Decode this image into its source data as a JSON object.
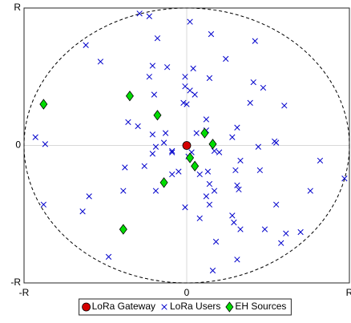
{
  "chart_data": {
    "type": "scatter",
    "xlim": [
      -1,
      1
    ],
    "ylim": [
      -1,
      1
    ],
    "xticks": [
      {
        "value": -1,
        "label": "-R"
      },
      0,
      {
        "value": 1,
        "label": "R"
      }
    ],
    "yticks": [
      {
        "value": -1,
        "label": "-R"
      },
      0,
      {
        "value": 1,
        "label": "R"
      }
    ],
    "grid": true,
    "legend": "bottom",
    "boundary_circle": true,
    "series": [
      {
        "name": "LoRa Gateway",
        "color": "#d40000",
        "marker": "circle",
        "x": [
          0
        ],
        "y": [
          0
        ]
      },
      {
        "name": "LoRa Users",
        "color": "#0000cc",
        "marker": "x",
        "x": [
          -0.29,
          -0.23,
          0.02,
          -0.18,
          0.15,
          0.42,
          -0.62,
          -0.53,
          -0.21,
          -0.12,
          0.24,
          0.04,
          -0.23,
          -0.01,
          0.41,
          0.14,
          0.02,
          -0.01,
          0.47,
          0.05,
          -0.2,
          -0.02,
          0.0,
          -0.36,
          -0.3,
          -0.13,
          0.12,
          0.39,
          0.6,
          0.12,
          -0.21,
          0.31,
          0.06,
          -0.93,
          -0.87,
          -0.14,
          -0.19,
          -0.09,
          0.28,
          0.44,
          0.54,
          0.55,
          0.2,
          -0.21,
          -0.09,
          0.03,
          0.17,
          0.01,
          0.33,
          0.82,
          -0.38,
          -0.26,
          -0.09,
          -0.05,
          0.13,
          0.08,
          0.3,
          0.14,
          0.32,
          0.45,
          0.76,
          0.97,
          0.31,
          0.17,
          -0.6,
          -0.39,
          -0.19,
          0.12,
          0.14,
          -0.88,
          -0.64,
          -0.01,
          0.55,
          0.28,
          0.08,
          0.29,
          0.33,
          0.48,
          0.61,
          0.7,
          0.58,
          0.18,
          -0.48,
          0.31,
          0.16
        ],
        "y": [
          0.96,
          0.94,
          0.9,
          0.78,
          0.81,
          0.76,
          0.73,
          0.61,
          0.58,
          0.57,
          0.63,
          0.56,
          0.5,
          0.5,
          0.46,
          0.49,
          0.4,
          0.43,
          0.42,
          0.37,
          0.37,
          0.31,
          0.3,
          0.17,
          0.14,
          0.09,
          0.19,
          0.31,
          0.29,
          0.11,
          0.08,
          0.13,
          0.09,
          0.06,
          0.01,
          0.02,
          -0.01,
          -0.04,
          0.06,
          -0.01,
          0.03,
          0.02,
          -0.05,
          -0.06,
          -0.05,
          -0.05,
          -0.04,
          -0.08,
          -0.11,
          -0.11,
          -0.16,
          -0.15,
          -0.21,
          -0.19,
          -0.19,
          -0.21,
          -0.18,
          -0.28,
          -0.32,
          -0.18,
          -0.33,
          -0.24,
          -0.29,
          -0.33,
          -0.37,
          -0.33,
          -0.33,
          -0.37,
          -0.43,
          -0.43,
          -0.48,
          -0.45,
          -0.43,
          -0.51,
          -0.53,
          -0.56,
          -0.61,
          -0.61,
          -0.64,
          -0.63,
          -0.71,
          -0.7,
          -0.81,
          -0.83,
          -0.91
        ]
      },
      {
        "name": "EH Sources",
        "color": "#00dd00",
        "marker": "diamond",
        "x": [
          -0.88,
          -0.35,
          -0.18,
          0.02,
          0.11,
          0.16,
          0.05,
          -0.14,
          -0.39
        ],
        "y": [
          0.3,
          0.36,
          0.22,
          -0.09,
          0.09,
          0.01,
          -0.15,
          -0.27,
          -0.61
        ]
      }
    ]
  }
}
